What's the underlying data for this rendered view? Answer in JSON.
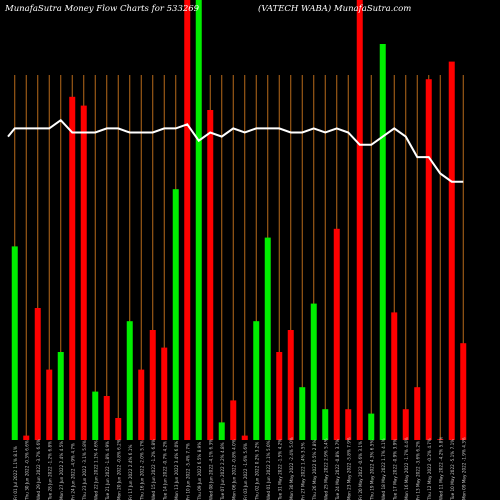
{
  "header": {
    "left": "MunafaSutra  Money Flow  Charts for 533269",
    "right": "(VATECH WABA) MunafaSutra.com"
  },
  "colors": {
    "background": "#000000",
    "grid": "#b86a1a",
    "up": "#00ee00",
    "down": "#ff0000",
    "line": "#ffffff",
    "label": "#cccccc"
  },
  "chart_data": {
    "type": "bar",
    "title": "MunafaSutra  Money Flow  Charts for 533269",
    "subtitle": "(VATECH WABA) MunafaSutra.com",
    "ylim": [
      0,
      100
    ],
    "line_ylim": [
      0,
      100
    ],
    "categories": [
      "Fri 01 Jul 2022 1.1% 8.1%",
      "Thu 30 Jun 2022 -0.3% 6.6%",
      "Wed 29 Jun 2022 -3.7% 6.6%",
      "Tue 28 Jun 2022 -1.2% 6.8%",
      "Mon 27 Jun 2022 2.4% 4.5%",
      "Fri 24 Jun 2022 -4.9% 4.7%",
      "Thu 23 Jun 2022 -3.1% 5.8%",
      "Wed 22 Jun 2022 1.1% 4.6%",
      "Tue 21 Jun 2022 -1.8% 4.9%",
      "Mon 20 Jun 2022 -0.8% 6.2%",
      "Fri 17 Jun 2022 2.4% 6.1%",
      "Thu 16 Jun 2022 -2.0% 5.7%",
      "Wed 15 Jun 2022 -1.2% 6.8%",
      "Tue 14 Jun 2022 -0.7% 4.2%",
      "Mon 13 Jun 2022 3.4% 6.0%",
      "Fri 10 Jun 2022 -5.4% 7.7%",
      "Thu 09 Jun 2022 6.5% 8.9%",
      "Wed 08 Jun 2022 -4.1% 6.3%",
      "Tue 07 Jun 2022 2.2% 4.8%",
      "Mon 06 Jun 2022 -0.8% 4.0%",
      "Fri 03 Jun 2022 -1.6% 5.6%",
      "Thu 02 Jun 2022 0.2% 3.2%",
      "Wed 01 Jun 2022 2.1% 5.0%",
      "Tue 31 May 2022 -1.5% 4.2%",
      "Mon 30 May 2022 -2.4% 5.0%",
      "Fri 27 May 2022 1.4% 3.5%",
      "Thu 26 May 2022 0.5% 2.8%",
      "Wed 25 May 2022 2.9% 5.4%",
      "Tue 24 May 2022 -0.8% 3.7%",
      "Mon 23 May 2022 -5.8% 7.9%",
      "Fri 20 May 2022 -0.6% 3.1%",
      "Thu 19 May 2022 4.3% 6.5%",
      "Wed 18 May 2022 1.7% 4.1%",
      "Tue 17 May 2022 -0.9% 3.9%",
      "Mon 16 May 2022 -1.7% 4.4%",
      "Fri 13 May 2022 -3.6% 6.2%",
      "Thu 12 May 2022 -0.2% 4.7%",
      "Wed 11 May 2022 -4.2% 5.8%",
      "Tue 10 May 2022 -5.1% 7.1%",
      "Mon 09 May 2022 -1.9% 4.3%"
    ],
    "bar_colors": [
      "green",
      "red",
      "red",
      "red",
      "green",
      "red",
      "red",
      "green",
      "red",
      "red",
      "green",
      "red",
      "red",
      "red",
      "green",
      "red",
      "green",
      "red",
      "green",
      "red",
      "red",
      "green",
      "green",
      "red",
      "red",
      "green",
      "green",
      "green",
      "red",
      "red",
      "red",
      "green",
      "green",
      "red",
      "red",
      "red",
      "red",
      "red",
      "red",
      "red"
    ],
    "values": [
      44,
      1,
      30,
      16,
      20,
      78,
      76,
      11,
      10,
      5,
      27,
      16,
      25,
      21,
      57,
      100,
      100,
      75,
      4,
      9,
      1,
      27,
      46,
      20,
      25,
      12,
      31,
      7,
      48,
      7,
      100,
      6,
      90,
      29,
      7,
      12,
      82,
      0,
      86,
      22
    ],
    "line": [
      76,
      76,
      76,
      76,
      78,
      75,
      75,
      75,
      76,
      76,
      75,
      75,
      75,
      76,
      76,
      77,
      73,
      75,
      74,
      76,
      75,
      76,
      76,
      76,
      75,
      75,
      76,
      75,
      76,
      75,
      72,
      72,
      74,
      76,
      74,
      69,
      69,
      65,
      63,
      63
    ],
    "line_start": [
      0,
      74
    ]
  }
}
